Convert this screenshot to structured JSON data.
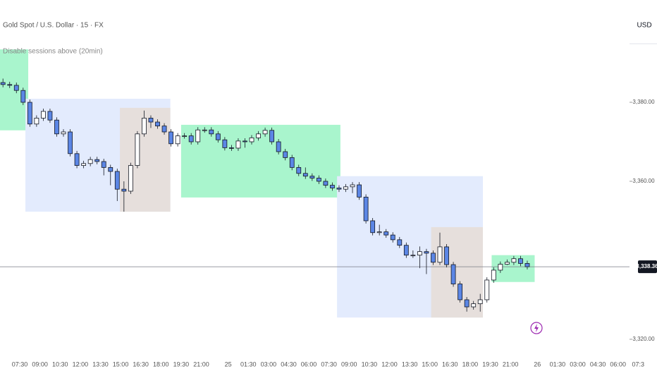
{
  "chart_data": {
    "type": "candlestick",
    "title": "Gold Spot / U.S. Dollar · 15 · FX",
    "subtitle": "Disable sessions above (20min)",
    "currency": "USD",
    "up_color": "#ffffff",
    "down_color": "#5b86e5",
    "wick_color": "#131722",
    "xlim": [
      -1.47,
      47.4
    ],
    "ylim": [
      3315.7,
      3405.9
    ],
    "grid": false,
    "xticks": [
      {
        "value": 0,
        "label": "07:30"
      },
      {
        "value": 1.5,
        "label": "09:00"
      },
      {
        "value": 3,
        "label": "10:30"
      },
      {
        "value": 4.5,
        "label": "12:00"
      },
      {
        "value": 6,
        "label": "13:30"
      },
      {
        "value": 7.5,
        "label": "15:00"
      },
      {
        "value": 9,
        "label": "16:30"
      },
      {
        "value": 10.5,
        "label": "18:00"
      },
      {
        "value": 12,
        "label": "19:30"
      },
      {
        "value": 13.5,
        "label": "21:00"
      },
      {
        "value": 15.5,
        "label": "25"
      },
      {
        "value": 17,
        "label": "01:30"
      },
      {
        "value": 18.5,
        "label": "03:00"
      },
      {
        "value": 20,
        "label": "04:30"
      },
      {
        "value": 21.5,
        "label": "06:00"
      },
      {
        "value": 23,
        "label": "07:30"
      },
      {
        "value": 24.5,
        "label": "09:00"
      },
      {
        "value": 26,
        "label": "10:30"
      },
      {
        "value": 27.5,
        "label": "12:00"
      },
      {
        "value": 29,
        "label": "13:30"
      },
      {
        "value": 30.5,
        "label": "15:00"
      },
      {
        "value": 32,
        "label": "16:30"
      },
      {
        "value": 33.5,
        "label": "18:00"
      },
      {
        "value": 35,
        "label": "19:30"
      },
      {
        "value": 36.5,
        "label": "21:00"
      },
      {
        "value": 38.5,
        "label": "26"
      },
      {
        "value": 40,
        "label": "01:30"
      },
      {
        "value": 41.5,
        "label": "03:00"
      },
      {
        "value": 43,
        "label": "04:30"
      },
      {
        "value": 44.5,
        "label": "06:00"
      },
      {
        "value": 46,
        "label": "07:3"
      }
    ],
    "yticks": [
      {
        "value": 3380,
        "label": "3,380.00"
      },
      {
        "value": 3360,
        "label": "3,360.00"
      },
      {
        "value": 3320,
        "label": "3,320.00"
      }
    ],
    "last_price": {
      "value": 3338.36,
      "label": "3,338.36"
    },
    "sessions": [
      {
        "x0": -1.47,
        "x1": 0.63,
        "top": 3393.4,
        "bottom": 3372.9,
        "color": "#a9f5cd"
      },
      {
        "x0": 0.42,
        "x1": 11.2,
        "top": 3380.9,
        "bottom": 3352.3,
        "color": "#e3ebfd"
      },
      {
        "x0": 7.45,
        "x1": 11.2,
        "top": 3378.6,
        "bottom": 3352.3,
        "color": "#e6dfdc"
      },
      {
        "x0": 12.0,
        "x1": 23.85,
        "top": 3374.3,
        "bottom": 3355.9,
        "color": "#a9f5cd"
      },
      {
        "x0": 23.6,
        "x1": 34.45,
        "top": 3361.3,
        "bottom": 3325.5,
        "color": "#e3ebfd"
      },
      {
        "x0": 30.6,
        "x1": 34.45,
        "top": 3348.4,
        "bottom": 3325.5,
        "color": "#e6dfdc"
      },
      {
        "x0": 35.1,
        "x1": 38.3,
        "top": 3341.3,
        "bottom": 3334.5,
        "color": "#a9f5cd"
      }
    ],
    "x": [
      -1.25,
      -0.75,
      -0.25,
      0.25,
      0.75,
      1.25,
      1.75,
      2.25,
      2.75,
      3.25,
      3.75,
      4.25,
      4.75,
      5.25,
      5.75,
      6.25,
      6.75,
      7.25,
      7.75,
      8.25,
      8.75,
      9.25,
      9.75,
      10.25,
      10.75,
      11.25,
      11.75,
      12.25,
      12.75,
      13.25,
      13.75,
      14.25,
      14.75,
      15.25,
      15.75,
      16.25,
      16.75,
      17.25,
      17.75,
      18.25,
      18.75,
      19.25,
      19.75,
      20.25,
      20.75,
      21.25,
      21.75,
      22.25,
      22.75,
      23.25,
      23.75,
      24.25,
      24.75,
      25.25,
      25.75,
      26.25,
      26.75,
      27.25,
      27.75,
      28.25,
      28.75,
      29.25,
      29.75,
      30.25,
      30.75,
      31.25,
      31.75,
      32.25,
      32.75,
      33.25,
      33.75,
      34.25,
      34.75,
      35.25,
      35.75,
      36.25,
      36.75,
      37.25,
      37.75
    ],
    "candles": [
      [
        3385.0,
        3386.0,
        3383.8,
        3384.5
      ],
      [
        3384.5,
        3385.2,
        3383.6,
        3384.3
      ],
      [
        3384.3,
        3385.0,
        3382.3,
        3383.0
      ],
      [
        3383.0,
        3383.7,
        3379.3,
        3380.0
      ],
      [
        3380.0,
        3380.7,
        3373.8,
        3374.5
      ],
      [
        3374.5,
        3376.7,
        3373.8,
        3376.0
      ],
      [
        3376.0,
        3378.4,
        3375.3,
        3377.7
      ],
      [
        3377.7,
        3378.4,
        3374.8,
        3375.5
      ],
      [
        3375.5,
        3376.2,
        3371.3,
        3372.0
      ],
      [
        3372.0,
        3373.2,
        3371.3,
        3372.5
      ],
      [
        3372.5,
        3373.2,
        3366.3,
        3367.0
      ],
      [
        3367.0,
        3367.7,
        3363.3,
        3364.0
      ],
      [
        3364.0,
        3365.2,
        3363.3,
        3364.5
      ],
      [
        3364.5,
        3366.2,
        3363.8,
        3365.5
      ],
      [
        3365.5,
        3366.2,
        3364.3,
        3365.0
      ],
      [
        3365.0,
        3365.7,
        3361.5,
        3363.5
      ],
      [
        3363.5,
        3364.2,
        3359.0,
        3362.5
      ],
      [
        3362.5,
        3363.2,
        3355.0,
        3358.0
      ],
      [
        3358.0,
        3360.0,
        3352.3,
        3357.5
      ],
      [
        3357.5,
        3364.7,
        3356.8,
        3364.0
      ],
      [
        3364.0,
        3372.7,
        3363.3,
        3372.0
      ],
      [
        3372.0,
        3377.9,
        3371.3,
        3376.0
      ],
      [
        3376.0,
        3376.7,
        3373.5,
        3375.0
      ],
      [
        3375.0,
        3375.7,
        3373.3,
        3374.0
      ],
      [
        3374.0,
        3374.7,
        3371.8,
        3372.5
      ],
      [
        3372.5,
        3373.2,
        3368.8,
        3369.5
      ],
      [
        3369.5,
        3372.2,
        3368.8,
        3371.5
      ],
      [
        3371.5,
        3372.2,
        3370.8,
        3371.5
      ],
      [
        3371.5,
        3372.2,
        3369.3,
        3370.0
      ],
      [
        3370.0,
        3373.7,
        3369.3,
        3373.0
      ],
      [
        3373.0,
        3373.7,
        3372.3,
        3373.0
      ],
      [
        3373.0,
        3373.7,
        3371.3,
        3372.0
      ],
      [
        3372.0,
        3372.7,
        3369.8,
        3370.5
      ],
      [
        3370.5,
        3371.2,
        3367.8,
        3368.5
      ],
      [
        3368.5,
        3369.2,
        3367.7,
        3368.4
      ],
      [
        3368.4,
        3370.9,
        3367.7,
        3370.2
      ],
      [
        3370.2,
        3370.9,
        3368.5,
        3370.0
      ],
      [
        3370.0,
        3371.7,
        3369.3,
        3371.0
      ],
      [
        3371.0,
        3372.7,
        3370.3,
        3372.0
      ],
      [
        3372.0,
        3373.6,
        3371.3,
        3372.9
      ],
      [
        3372.9,
        3373.6,
        3369.3,
        3370.0
      ],
      [
        3370.0,
        3370.7,
        3366.8,
        3367.5
      ],
      [
        3367.5,
        3368.2,
        3365.3,
        3366.0
      ],
      [
        3366.0,
        3366.7,
        3362.8,
        3363.5
      ],
      [
        3363.5,
        3364.2,
        3361.3,
        3362.0
      ],
      [
        3362.0,
        3363.5,
        3360.6,
        3361.3
      ],
      [
        3361.3,
        3362.0,
        3360.1,
        3360.8
      ],
      [
        3360.8,
        3361.5,
        3359.3,
        3360.0
      ],
      [
        3360.0,
        3360.7,
        3358.3,
        3359.0
      ],
      [
        3359.0,
        3359.7,
        3357.6,
        3358.3
      ],
      [
        3358.3,
        3359.0,
        3357.3,
        3358.0
      ],
      [
        3358.0,
        3359.3,
        3357.3,
        3358.6
      ],
      [
        3358.6,
        3359.8,
        3357.0,
        3359.1
      ],
      [
        3359.1,
        3359.8,
        3355.3,
        3356.0
      ],
      [
        3356.0,
        3356.7,
        3349.3,
        3350.0
      ],
      [
        3350.0,
        3350.7,
        3346.3,
        3347.0
      ],
      [
        3347.0,
        3349.0,
        3346.3,
        3347.2
      ],
      [
        3347.2,
        3347.9,
        3345.7,
        3346.4
      ],
      [
        3346.4,
        3347.1,
        3344.5,
        3345.2
      ],
      [
        3345.2,
        3345.9,
        3343.1,
        3343.8
      ],
      [
        3343.8,
        3344.5,
        3340.6,
        3341.3
      ],
      [
        3341.3,
        3342.5,
        3340.6,
        3341.3
      ],
      [
        3341.3,
        3343.5,
        3338.0,
        3342.2
      ],
      [
        3342.2,
        3342.9,
        3336.5,
        3341.8
      ],
      [
        3341.8,
        3342.5,
        3338.8,
        3339.5
      ],
      [
        3339.5,
        3347.0,
        3338.8,
        3343.4
      ],
      [
        3343.4,
        3344.1,
        3338.2,
        3338.9
      ],
      [
        3338.9,
        3339.6,
        3333.3,
        3334.0
      ],
      [
        3334.0,
        3334.7,
        3329.3,
        3330.0
      ],
      [
        3330.0,
        3330.7,
        3327.0,
        3328.2
      ],
      [
        3328.2,
        3329.7,
        3327.5,
        3329.0
      ],
      [
        3329.0,
        3331.5,
        3327.0,
        3330.0
      ],
      [
        3330.0,
        3335.7,
        3329.3,
        3335.0
      ],
      [
        3335.0,
        3338.2,
        3334.3,
        3337.5
      ],
      [
        3337.5,
        3339.7,
        3336.8,
        3339.0
      ],
      [
        3339.0,
        3340.2,
        3338.8,
        3339.5
      ],
      [
        3339.5,
        3341.1,
        3338.8,
        3340.4
      ],
      [
        3340.4,
        3341.1,
        3338.5,
        3339.2
      ],
      [
        3339.2,
        3339.9,
        3337.7,
        3338.36
      ]
    ]
  }
}
